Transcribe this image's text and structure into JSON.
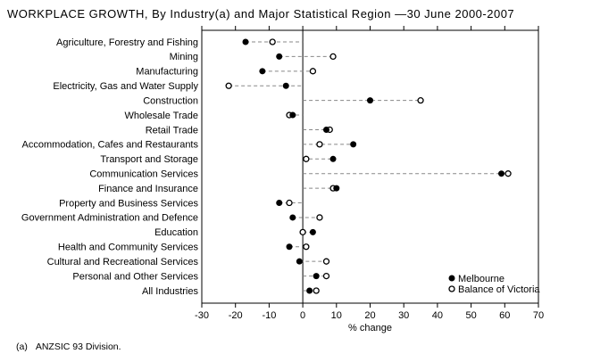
{
  "title": "WORKPLACE GROWTH, By Industry(a) and Major Statistical Region —30 June 2000-2007",
  "footnote": {
    "marker": "(a)",
    "text": "ANZSIC 93 Division."
  },
  "chart_data": {
    "type": "scatter",
    "subtype": "horizontal-dot-plot",
    "title": "WORKPLACE GROWTH, By Industry(a) and Major Statistical Region —30 June 2000-2007",
    "categories": [
      "Agriculture, Forestry and Fishing",
      "Mining",
      "Manufacturing",
      "Electricity, Gas and Water Supply",
      "Construction",
      "Wholesale Trade",
      "Retail Trade",
      "Accommodation, Cafes and Restaurants",
      "Transport and Storage",
      "Communication Services",
      "Finance and Insurance",
      "Property and Business Services",
      "Government Administration and Defence",
      "Education",
      "Health and Community Services",
      "Cultural and Recreational Services",
      "Personal and Other Services",
      "All Industries"
    ],
    "series": [
      {
        "name": "Melbourne",
        "marker": "filled-circle",
        "values": [
          -17,
          -7,
          -12,
          -5,
          20,
          -3,
          7,
          15,
          9,
          59,
          10,
          -7,
          -3,
          3,
          -4,
          -1,
          4,
          2
        ]
      },
      {
        "name": "Balance of Victoria",
        "marker": "open-circle",
        "values": [
          -9,
          9,
          3,
          -22,
          35,
          -4,
          8,
          5,
          1,
          61,
          9,
          -4,
          5,
          0,
          1,
          7,
          7,
          4
        ]
      }
    ],
    "xlabel": "% change",
    "xlim": [
      -30,
      70
    ],
    "xticks": [
      -30,
      -20,
      -10,
      0,
      10,
      20,
      30,
      40,
      50,
      60,
      70
    ],
    "zero_line": true,
    "connector_style": "dashed line from zero axis spanning both points",
    "legend_position": "inside-bottom-right",
    "grid": false,
    "colors": {
      "background": "#ffffff",
      "text": "#000000",
      "frame": "#000000",
      "filled_dot": "#000000",
      "open_dot_fill": "#ffffff",
      "open_dot_stroke": "#000000",
      "dash": "#888888"
    }
  }
}
